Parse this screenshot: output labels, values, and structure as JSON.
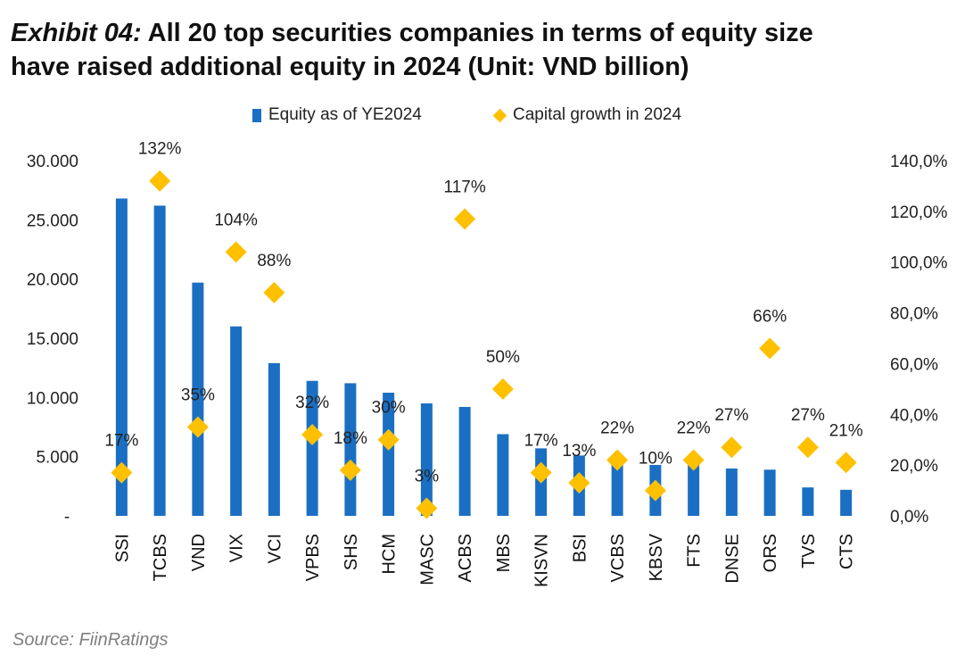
{
  "header": {
    "exhibit": "Exhibit 04:",
    "title_line1": "All 20 top securities companies in terms of equity size",
    "title_line2": "have raised additional equity in 2024 (Unit: VND billion)"
  },
  "source": "Source: FiinRatings",
  "colors": {
    "bar": "#1B6FC3",
    "marker": "#FFC000",
    "text": "#222222"
  },
  "chart_data": {
    "type": "bar",
    "title": "All 20 top securities companies in terms of equity size have raised additional equity in 2024 (Unit: VND billion)",
    "categories": [
      "SSI",
      "TCBS",
      "VND",
      "VIX",
      "VCI",
      "VPBS",
      "SHS",
      "HCM",
      "MASC",
      "ACBS",
      "MBS",
      "KISVN",
      "BSI",
      "VCBS",
      "KBSV",
      "FTS",
      "DNSE",
      "ORS",
      "TVS",
      "CTS"
    ],
    "series": [
      {
        "name": "Equity as of YE2024",
        "kind": "bar",
        "axis": "left",
        "values": [
          26800,
          26200,
          19700,
          16000,
          12900,
          11400,
          11200,
          10400,
          9500,
          9200,
          6900,
          5700,
          5100,
          4900,
          4300,
          4400,
          4000,
          3900,
          2400,
          2200
        ]
      },
      {
        "name": "Capital growth in 2024",
        "kind": "scatter",
        "axis": "right",
        "values": [
          17,
          132,
          35,
          104,
          88,
          32,
          18,
          30,
          3,
          117,
          50,
          17,
          13,
          22,
          10,
          22,
          27,
          66,
          27,
          21
        ],
        "labels": [
          "17%",
          "132%",
          "35%",
          "104%",
          "88%",
          "32%",
          "18%",
          "30%",
          "3%",
          "117%",
          "50%",
          "17%",
          "13%",
          "22%",
          "10%",
          "22%",
          "27%",
          "66%",
          "27%",
          "21%"
        ]
      }
    ],
    "y_left": {
      "min": 0,
      "max": 30000,
      "ticks": [
        0,
        5000,
        10000,
        15000,
        20000,
        25000,
        30000
      ],
      "tick_labels": [
        "-",
        "5.000",
        "10.000",
        "15.000",
        "20.000",
        "25.000",
        "30.000"
      ]
    },
    "y_right": {
      "min": 0,
      "max": 140,
      "ticks": [
        0,
        20,
        40,
        60,
        80,
        100,
        120,
        140
      ],
      "tick_labels": [
        "0,0%",
        "20,0%",
        "40,0%",
        "60,0%",
        "80,0%",
        "100,0%",
        "120,0%",
        "140,0%"
      ]
    },
    "legend": {
      "position": "top"
    },
    "grid": false
  }
}
